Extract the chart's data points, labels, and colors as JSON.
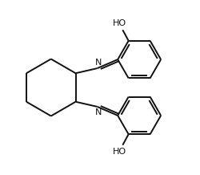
{
  "background_color": "#ffffff",
  "line_color": "#111111",
  "line_width": 1.4,
  "font_size": 7.5,
  "figsize": [
    2.5,
    2.18
  ],
  "dpi": 100,
  "xlim": [
    0,
    10
  ],
  "ylim": [
    0,
    8.72
  ]
}
